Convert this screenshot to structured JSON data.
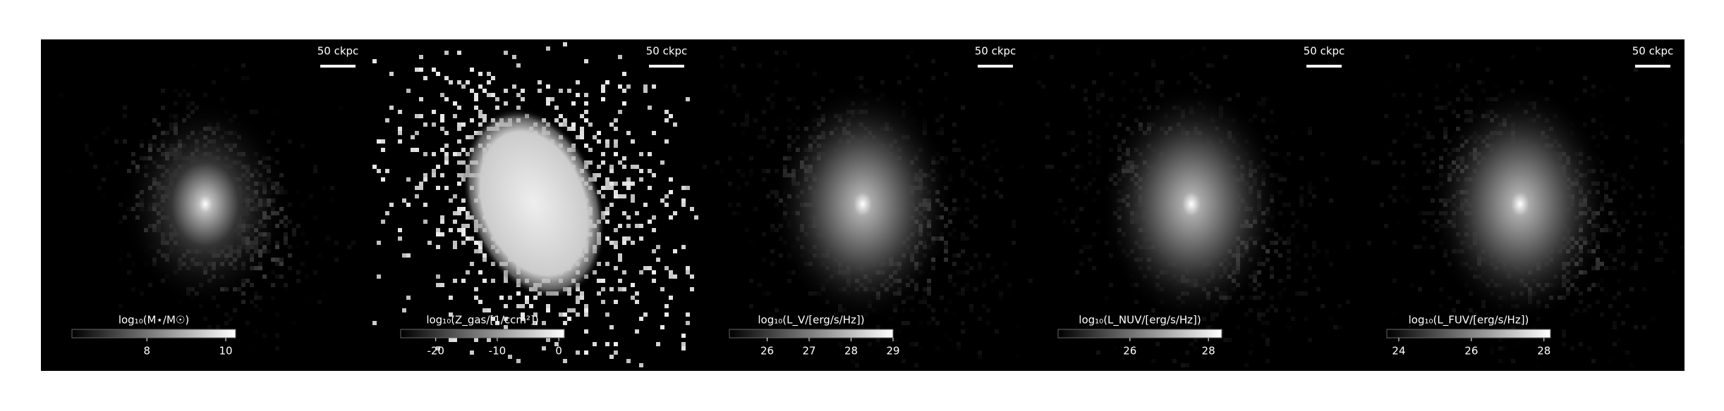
{
  "panels": [
    {
      "scale_label": "50 ckpc",
      "colorbar": {
        "label": "log₁₀(M⋆/M☉)",
        "lim": [
          6.1,
          10.25
        ],
        "ticks": [
          8,
          10
        ]
      }
    },
    {
      "scale_label": "50 ckpc",
      "colorbar": {
        "label": "log₁₀(Z_gas/[1/ccm²])",
        "lim": [
          -25.7,
          0.9
        ],
        "ticks": [
          -20,
          -10,
          0
        ]
      }
    },
    {
      "scale_label": "50 ckpc",
      "colorbar": {
        "label": "log₁₀(L_V/[erg/s/Hz])",
        "lim": [
          25.1,
          29
        ],
        "ticks": [
          26,
          27,
          28,
          29
        ]
      }
    },
    {
      "scale_label": "50 ckpc",
      "colorbar": {
        "label": "log₁₀(L_NUV/[erg/s/Hz])",
        "lim": [
          24.17,
          28.34
        ],
        "ticks": [
          26,
          28
        ]
      }
    },
    {
      "scale_label": "50 ckpc",
      "colorbar": {
        "label": "log₁₀(L_FUV/[erg/s/Hz])",
        "lim": [
          23.67,
          28.18
        ],
        "ticks": [
          24,
          26,
          28
        ]
      }
    }
  ]
}
